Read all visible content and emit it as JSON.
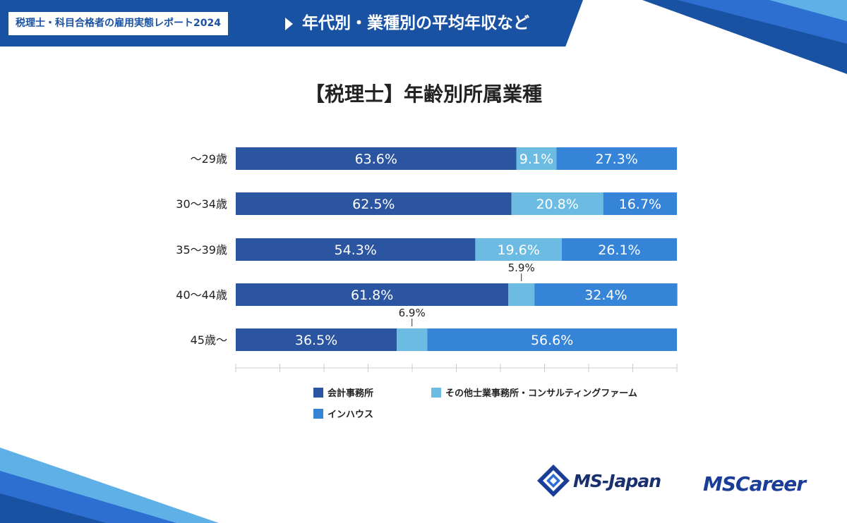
{
  "header": {
    "subtitle": "税理士・科目合格者の雇用実態レポート2024",
    "title": "年代別・業種別の平均年収など"
  },
  "colors": {
    "brand": "#1a52a3",
    "series": [
      "#2b55a0",
      "#6cbbe2",
      "#3584d8"
    ]
  },
  "chart_data": {
    "type": "bar",
    "orientation": "horizontal",
    "stacked": true,
    "title": "【税理士】年齢別所属業種",
    "categories": [
      "〜29歳",
      "30〜34歳",
      "35〜39歳",
      "40〜44歳",
      "45歳〜"
    ],
    "series": [
      {
        "name": "会計事務所",
        "values": [
          63.6,
          62.5,
          54.3,
          61.8,
          36.5
        ],
        "labels": [
          "63.6%",
          "62.5%",
          "54.3%",
          "61.8%",
          "36.5%"
        ]
      },
      {
        "name": "その他士業事務所・コンサルティングファーム",
        "values": [
          9.1,
          20.8,
          19.6,
          5.9,
          6.9
        ],
        "labels": [
          "9.1%",
          "20.8%",
          "19.6%",
          "5.9%",
          "6.9%"
        ]
      },
      {
        "name": "インハウス",
        "values": [
          27.3,
          16.7,
          26.1,
          32.4,
          56.6
        ],
        "labels": [
          "27.3%",
          "16.7%",
          "26.1%",
          "32.4%",
          "56.6%"
        ]
      }
    ],
    "xlim": [
      0,
      100
    ],
    "legend_position": "bottom"
  },
  "logos": {
    "ms_japan": "MS-Japan",
    "ms_career": "MSCareer"
  }
}
